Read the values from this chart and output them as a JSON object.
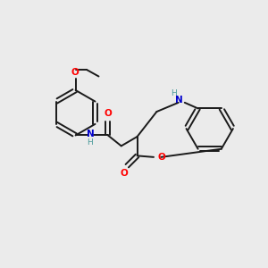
{
  "background_color": "#ebebeb",
  "bond_color": "#1a1a1a",
  "O_color": "#ff0000",
  "N_color": "#0000cc",
  "NH_color": "#4a9a9a",
  "figsize": [
    3.0,
    3.0
  ],
  "dpi": 100,
  "xlim": [
    0,
    10
  ],
  "ylim": [
    0,
    10
  ]
}
